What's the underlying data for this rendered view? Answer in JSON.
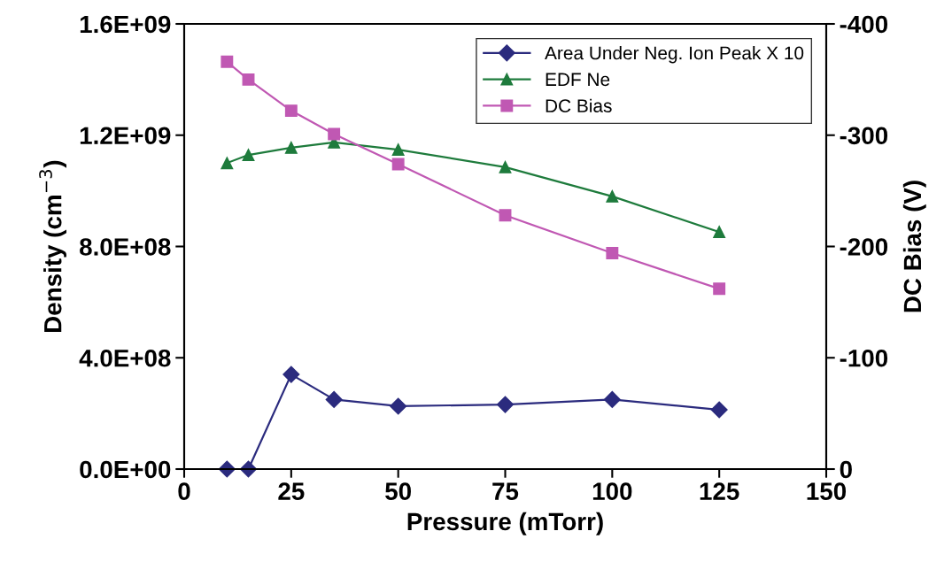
{
  "chart_data": {
    "type": "line",
    "xlabel": "Pressure (mTorr)",
    "ylabel": "Density (cm$^{−3}$)",
    "y2label": "DC Bias (V)",
    "x": [
      10,
      15,
      25,
      35,
      50,
      75,
      100,
      125
    ],
    "xlim": [
      0,
      150
    ],
    "xticks": [
      0,
      25,
      50,
      75,
      100,
      125,
      150
    ],
    "ylim": [
      0,
      1600000000
    ],
    "yticks": [
      {
        "value": 0,
        "label": "0.0E+00"
      },
      {
        "value": 400000000,
        "label": "4.0E+08"
      },
      {
        "value": 800000000,
        "label": "8.0E+08"
      },
      {
        "value": 1200000000,
        "label": "1.2E+09"
      },
      {
        "value": 1600000000,
        "label": "1.6E+09"
      }
    ],
    "y2lim": [
      0,
      -400
    ],
    "y2ticks": [
      0,
      -100,
      -200,
      -300,
      -400
    ],
    "grid": false,
    "legend": "top right",
    "line_style": "solid",
    "series": [
      {
        "name": "Area Under Neg. Ion Peak X 10",
        "color": "#2b2b7e",
        "marker": "diamond",
        "values": [
          0,
          0,
          340000000,
          250000000,
          226000000,
          232000000,
          250000000,
          213000000
        ]
      },
      {
        "name": "EDF Ne",
        "color": "#1e7b3c",
        "marker": "triangle",
        "values": [
          1100000000,
          1129000000,
          1155000000,
          1174000000,
          1148000000,
          1085000000,
          980000000,
          852000000
        ]
      },
      {
        "name": "DC Bias",
        "color": "#c058b3",
        "marker": "square",
        "axis": "y2",
        "values": [
          -366,
          -350,
          -322,
          -301,
          -274,
          -228,
          -194,
          -162
        ]
      }
    ]
  }
}
